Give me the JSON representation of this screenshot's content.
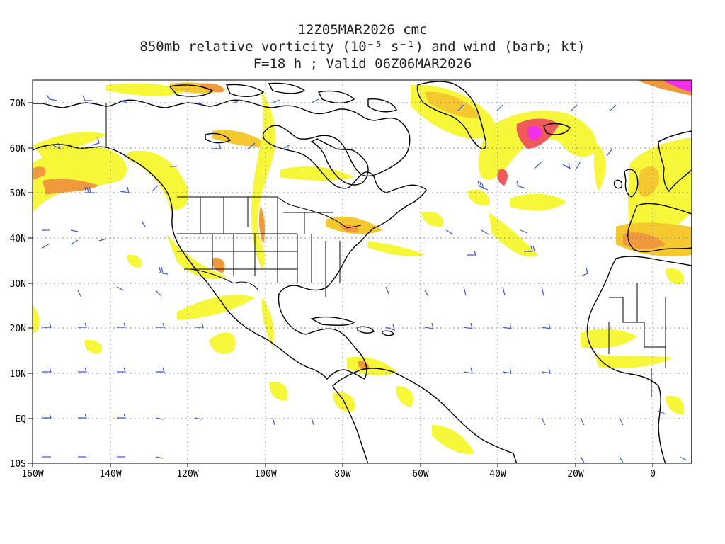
{
  "titles": {
    "line1": "12Z05MAR2026 cmc",
    "line2": "850mb relative vorticity (10⁻⁵ s⁻¹) and wind (barb; kt)",
    "line3": "F=18 h ; Valid 06Z06MAR2026"
  },
  "lat_ticks": [
    "70N",
    "60N",
    "50N",
    "40N",
    "30N",
    "20N",
    "10N",
    "EQ",
    "10S"
  ],
  "lon_ticks": [
    "160W",
    "140W",
    "120W",
    "100W",
    "80W",
    "60W",
    "40W",
    "20W",
    "0"
  ],
  "colors": {
    "weak": "#f7f73a",
    "moderate": "#f5c830",
    "strong": "#f19a3d",
    "stronger": "#f05a5a",
    "max": "#f230e8",
    "barb": "#3a57e0",
    "coast": "#000000"
  }
}
